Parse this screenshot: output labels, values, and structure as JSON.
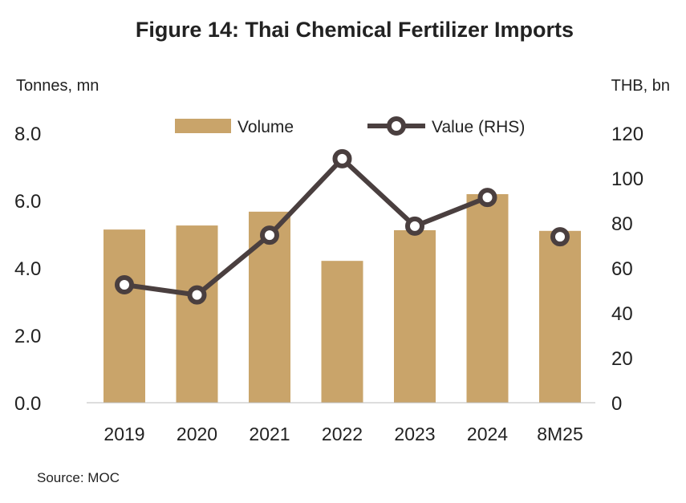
{
  "chart_data": {
    "type": "bar+line",
    "title": "Figure 14: Thai Chemical Fertilizer Imports",
    "ylabel_left": "Tonnes, mn",
    "ylabel_right": "THB, bn",
    "categories": [
      "2019",
      "2020",
      "2021",
      "2022",
      "2023",
      "2024",
      "8M25"
    ],
    "ylim_left": [
      0,
      8
    ],
    "yticks_left": [
      "0.0",
      "2.0",
      "4.0",
      "6.0",
      "8.0"
    ],
    "ylim_right": [
      0,
      120
    ],
    "yticks_right": [
      "0",
      "20",
      "40",
      "60",
      "80",
      "100",
      "120"
    ],
    "series": [
      {
        "name": "Volume",
        "type": "bar",
        "axis": "left",
        "color": "#C9A46A",
        "values": [
          5.14,
          5.26,
          5.67,
          4.21,
          5.12,
          6.19,
          5.1
        ]
      },
      {
        "name": "Value (RHS)",
        "type": "line",
        "axis": "right",
        "color": "#4A3F3F",
        "values": [
          52.5,
          48.0,
          74.6,
          108.6,
          78.6,
          91.4,
          73.9
        ]
      }
    ],
    "legend": "top",
    "grid": false,
    "source": "Source: MOC"
  }
}
